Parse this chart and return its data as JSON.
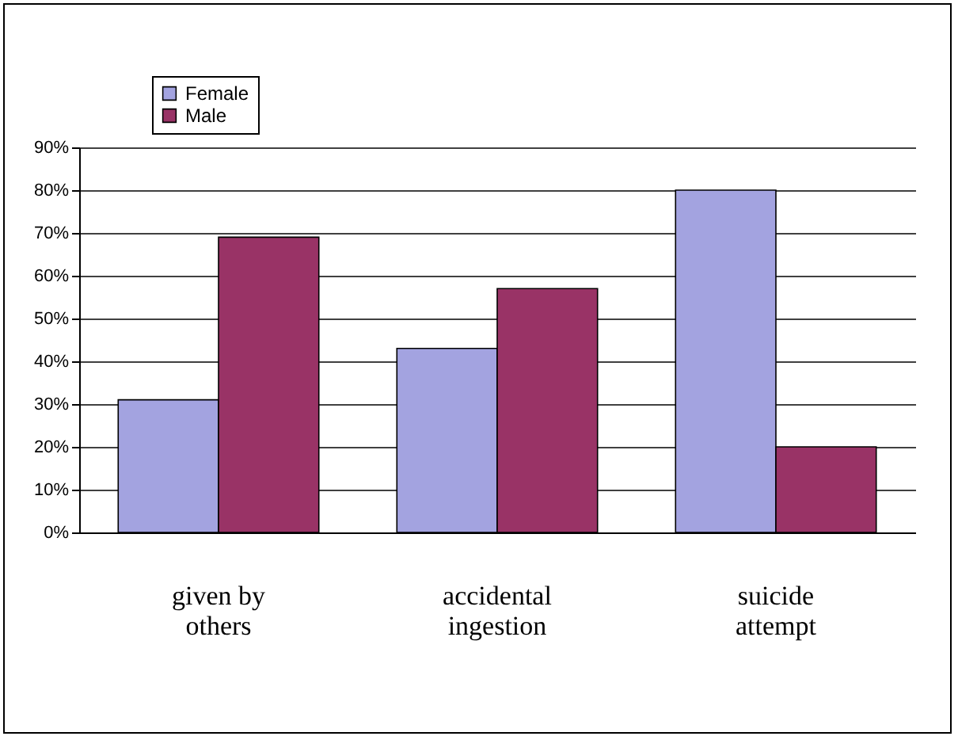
{
  "chart_data": {
    "type": "bar",
    "categories": [
      "given by others",
      "accidental ingestion",
      "suicide attempt"
    ],
    "series": [
      {
        "name": "Female",
        "color": "#a3a3e0",
        "values": [
          31,
          43,
          80
        ]
      },
      {
        "name": "Male",
        "color": "#993366",
        "values": [
          69,
          57,
          20
        ]
      }
    ],
    "ylim": [
      0,
      90
    ],
    "yticks": [
      {
        "value": 0,
        "label": "0%"
      },
      {
        "value": 10,
        "label": "10%"
      },
      {
        "value": 20,
        "label": "20%"
      },
      {
        "value": 30,
        "label": "30%"
      },
      {
        "value": 40,
        "label": "40%"
      },
      {
        "value": 50,
        "label": "50%"
      },
      {
        "value": 60,
        "label": "60%"
      },
      {
        "value": 70,
        "label": "70%"
      },
      {
        "value": 80,
        "label": "80%"
      },
      {
        "value": 90,
        "label": "90%"
      }
    ],
    "grid": "y",
    "legend": "top left"
  }
}
